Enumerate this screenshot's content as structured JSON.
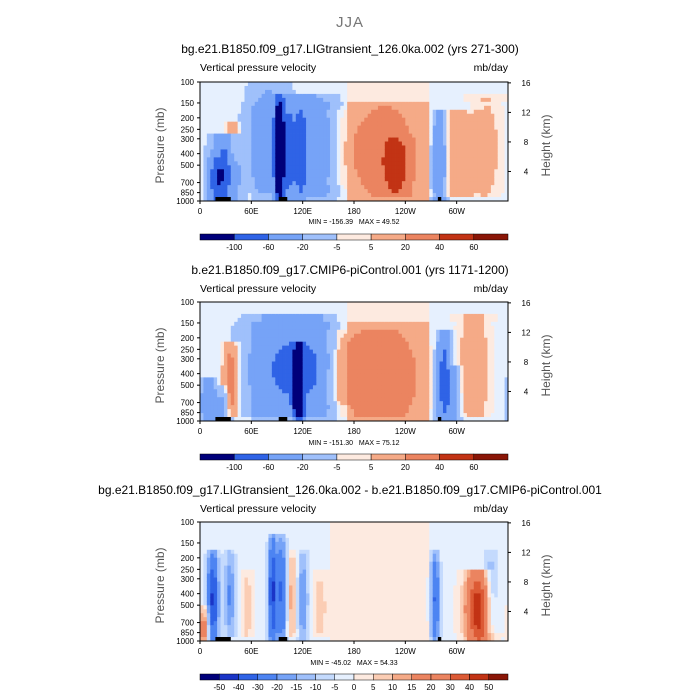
{
  "season": "JJA",
  "colors": {
    "neg": [
      "#00007a",
      "#1a35c7",
      "#2f63e6",
      "#4d84f2",
      "#76a3f7",
      "#9fc0fb",
      "#c4dafd",
      "#e6f0fe"
    ],
    "pos": [
      "#fdeae0",
      "#fbcdb4",
      "#f5aa87",
      "#eb8460",
      "#dc5a35",
      "#c23314",
      "#8a1607"
    ],
    "land": "#000000"
  },
  "chart_data": [
    {
      "type": "heatmap",
      "title": "bg.e21.B1850.f09_g17.LIGtransient_126.0ka.002 (yrs 271-300)",
      "variable_label": "Vertical pressure velocity",
      "units_label": "mb/day",
      "ylabel": "Pressure (mb)",
      "y2label": "Height (km)",
      "x_ticks": [
        "0",
        "60E",
        "120E",
        "180",
        "120W",
        "60W"
      ],
      "y_ticks": [
        "100",
        "150",
        "200",
        "250",
        "300",
        "400",
        "500",
        "700",
        "850",
        "1000"
      ],
      "y2_ticks": [
        "16",
        "12",
        "8",
        "4"
      ],
      "min_label": "MIN = -156.39",
      "max_label": "MAX = 49.52",
      "colorbar_ticks": [
        "-100",
        "-60",
        "-20",
        "-5",
        "5",
        "20",
        "40",
        "60"
      ],
      "features": [
        {
          "lon": 30,
          "amp": -90,
          "width": 10,
          "lo": 330,
          "hi": 1000
        },
        {
          "lon": 18,
          "amp": -50,
          "width": 6,
          "lo": 500,
          "hi": 1000
        },
        {
          "lon": 38,
          "amp": 35,
          "width": 5,
          "lo": 250,
          "hi": 850
        },
        {
          "lon": 80,
          "amp": -35,
          "width": 16,
          "lo": 120,
          "hi": 820
        },
        {
          "lon": 93,
          "amp": -155,
          "width": 4,
          "lo": 150,
          "hi": 1000
        },
        {
          "lon": 105,
          "amp": -55,
          "width": 5,
          "lo": 150,
          "hi": 1000
        },
        {
          "lon": 118,
          "amp": -60,
          "width": 5,
          "lo": 150,
          "hi": 1000
        },
        {
          "lon": 135,
          "amp": -40,
          "width": 16,
          "lo": 150,
          "hi": 900
        },
        {
          "lon": 150,
          "amp": 8,
          "width": 18,
          "lo": 200,
          "hi": 700
        },
        {
          "lon": 215,
          "amp": 25,
          "width": 28,
          "lo": 180,
          "hi": 850
        },
        {
          "lon": 230,
          "amp": 30,
          "width": 10,
          "lo": 350,
          "hi": 850
        },
        {
          "lon": 280,
          "amp": -65,
          "width": 5,
          "lo": 200,
          "hi": 1000
        },
        {
          "lon": 300,
          "amp": 18,
          "width": 14,
          "lo": 200,
          "hi": 900
        },
        {
          "lon": 335,
          "amp": 12,
          "width": 12,
          "lo": 150,
          "hi": 900
        }
      ]
    },
    {
      "type": "heatmap",
      "title": "b.e21.B1850.f09_g17.CMIP6-piControl.001 (yrs 1171-1200)",
      "variable_label": "Vertical pressure velocity",
      "units_label": "mb/day",
      "ylabel": "Pressure (mb)",
      "y2label": "Height (km)",
      "x_ticks": [
        "0",
        "60E",
        "120E",
        "180",
        "120W",
        "60W"
      ],
      "y_ticks": [
        "100",
        "150",
        "200",
        "250",
        "300",
        "400",
        "500",
        "700",
        "850",
        "1000"
      ],
      "y2_ticks": [
        "16",
        "12",
        "8",
        "4"
      ],
      "min_label": "MIN = -151.30",
      "max_label": "MAX = 75.12",
      "colorbar_ticks": [
        "-100",
        "-60",
        "-20",
        "-5",
        "5",
        "20",
        "40",
        "60"
      ],
      "features": [
        {
          "lon": 10,
          "amp": -50,
          "width": 6,
          "lo": 500,
          "hi": 1000
        },
        {
          "lon": 36,
          "amp": 40,
          "width": 6,
          "lo": 250,
          "hi": 900
        },
        {
          "lon": 28,
          "amp": -35,
          "width": 5,
          "lo": 600,
          "hi": 1000
        },
        {
          "lon": 100,
          "amp": -60,
          "width": 28,
          "lo": 150,
          "hi": 900
        },
        {
          "lon": 115,
          "amp": -150,
          "width": 4,
          "lo": 250,
          "hi": 1000
        },
        {
          "lon": 135,
          "amp": -30,
          "width": 10,
          "lo": 150,
          "hi": 900
        },
        {
          "lon": 160,
          "amp": 8,
          "width": 14,
          "lo": 200,
          "hi": 700
        },
        {
          "lon": 210,
          "amp": 28,
          "width": 30,
          "lo": 200,
          "hi": 900
        },
        {
          "lon": 285,
          "amp": -80,
          "width": 5,
          "lo": 200,
          "hi": 1000
        },
        {
          "lon": 296,
          "amp": -45,
          "width": 5,
          "lo": 400,
          "hi": 1000
        },
        {
          "lon": 320,
          "amp": 18,
          "width": 12,
          "lo": 150,
          "hi": 900
        }
      ]
    },
    {
      "type": "heatmap",
      "title": "bg.e21.B1850.f09_g17.LIGtransient_126.0ka.002 - b.e21.B1850.f09_g17.CMIP6-piControl.001",
      "variable_label": "Vertical pressure velocity",
      "units_label": "mb/day",
      "ylabel": "Pressure (mb)",
      "y2label": "Height (km)",
      "x_ticks": [
        "0",
        "60E",
        "120E",
        "180",
        "120W",
        "60W"
      ],
      "y_ticks": [
        "100",
        "150",
        "200",
        "250",
        "300",
        "400",
        "500",
        "700",
        "850",
        "1000"
      ],
      "y2_ticks": [
        "16",
        "12",
        "8",
        "4"
      ],
      "min_label": "MIN = -45.02",
      "max_label": "MAX = 54.33",
      "colorbar_ticks": [
        "-50",
        "-40",
        "-30",
        "-20",
        "-15",
        "-10",
        "-5",
        "0",
        "5",
        "10",
        "15",
        "20",
        "30",
        "40",
        "50"
      ],
      "features": [
        {
          "lon": 15,
          "amp": -40,
          "width": 5,
          "lo": 200,
          "hi": 1000
        },
        {
          "lon": 5,
          "amp": 25,
          "width": 4,
          "lo": 600,
          "hi": 1000
        },
        {
          "lon": 35,
          "amp": -20,
          "width": 5,
          "lo": 200,
          "hi": 900
        },
        {
          "lon": 55,
          "amp": 10,
          "width": 5,
          "lo": 300,
          "hi": 900
        },
        {
          "lon": 85,
          "amp": -40,
          "width": 4,
          "lo": 150,
          "hi": 1000
        },
        {
          "lon": 96,
          "amp": -30,
          "width": 4,
          "lo": 150,
          "hi": 1000
        },
        {
          "lon": 108,
          "amp": 15,
          "width": 4,
          "lo": 200,
          "hi": 900
        },
        {
          "lon": 120,
          "amp": -20,
          "width": 5,
          "lo": 200,
          "hi": 1000
        },
        {
          "lon": 140,
          "amp": 10,
          "width": 6,
          "lo": 300,
          "hi": 900
        },
        {
          "lon": 275,
          "amp": -30,
          "width": 4,
          "lo": 200,
          "hi": 1000
        },
        {
          "lon": 325,
          "amp": 50,
          "width": 10,
          "lo": 300,
          "hi": 1000
        },
        {
          "lon": 340,
          "amp": -15,
          "width": 6,
          "lo": 200,
          "hi": 800
        }
      ]
    }
  ]
}
